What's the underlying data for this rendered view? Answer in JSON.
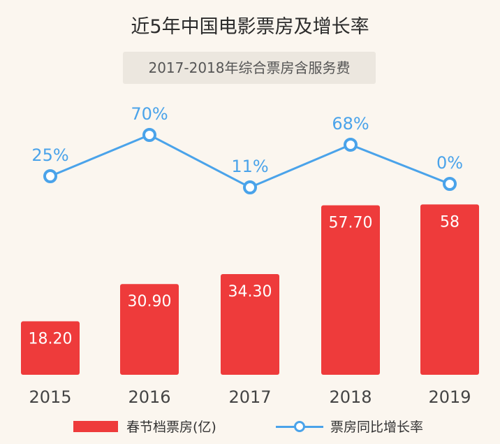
{
  "chart_data": {
    "type": "bar",
    "title": "近5年中国电影票房及增长率",
    "subtitle": "2017-2018年综合票房含服务费",
    "categories": [
      "2015",
      "2016",
      "2017",
      "2018",
      "2019"
    ],
    "bar_value_labels": [
      "18.20",
      "30.90",
      "34.30",
      "57.70",
      "58"
    ],
    "series": [
      {
        "name": "春节档票房(亿)",
        "type": "bar",
        "values": [
          18.2,
          30.9,
          34.3,
          57.7,
          58
        ],
        "color": "#ee3b3b"
      },
      {
        "name": "票房同比增长率",
        "type": "line",
        "values": [
          25,
          70,
          11,
          68,
          0
        ],
        "labels": [
          "25%",
          "70%",
          "11%",
          "68%",
          "0%"
        ],
        "color": "#4aa3ea"
      }
    ],
    "legend_position": "bottom",
    "grid": false
  }
}
